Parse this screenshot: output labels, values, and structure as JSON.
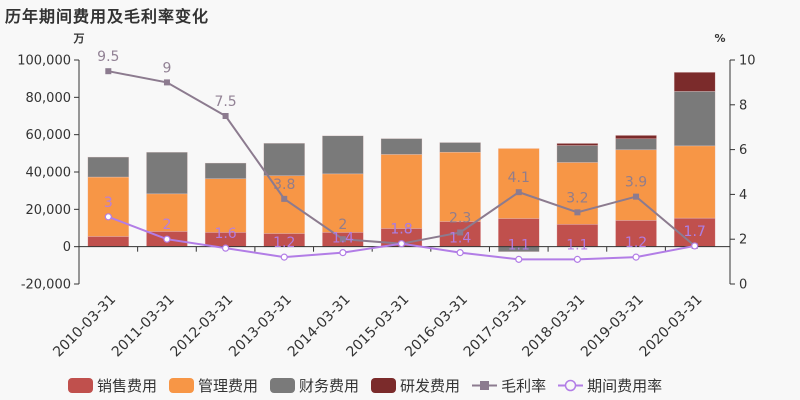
{
  "title": "历年期间费用及毛利率变化",
  "chart_data": {
    "type": "bar",
    "title": "历年期间费用及毛利率变化",
    "left_axis": {
      "unit": "万",
      "min": -20000,
      "max": 100000,
      "ticks": [
        -20000,
        0,
        20000,
        40000,
        60000,
        80000,
        100000
      ],
      "tick_labels": [
        "-20,000",
        "0",
        "20,000",
        "40,000",
        "60,000",
        "80,000",
        "100,000"
      ]
    },
    "right_axis": {
      "unit": "%",
      "min": 0,
      "max": 10,
      "ticks": [
        0,
        2,
        4,
        6,
        8,
        10
      ],
      "tick_labels": [
        "0",
        "2",
        "4",
        "6",
        "8",
        "10"
      ]
    },
    "categories": [
      "2010-03-31",
      "2011-03-31",
      "2012-03-31",
      "2013-03-31",
      "2014-03-31",
      "2015-03-31",
      "2016-03-31",
      "2017-03-31",
      "2018-03-31",
      "2019-03-31",
      "2020-03-31"
    ],
    "series": [
      {
        "name": "销售费用",
        "type": "bar",
        "stack": true,
        "axis": "left",
        "color": "#c0504d",
        "values": [
          5500,
          8200,
          7700,
          7100,
          7700,
          9800,
          13500,
          15100,
          12000,
          14100,
          15300
        ]
      },
      {
        "name": "管理费用",
        "type": "bar",
        "stack": true,
        "axis": "left",
        "color": "#f79646",
        "values": [
          31800,
          20100,
          28700,
          30900,
          31300,
          39600,
          37100,
          37500,
          33100,
          37800,
          38700
        ]
      },
      {
        "name": "财务费用",
        "type": "bar",
        "stack": true,
        "axis": "left",
        "color": "#7a7a7a",
        "values": [
          10700,
          22300,
          8400,
          17400,
          20400,
          8500,
          5200,
          -2700,
          9100,
          5900,
          29200
        ]
      },
      {
        "name": "研发费用",
        "type": "bar",
        "stack": true,
        "axis": "left",
        "color": "#7b2b2b",
        "values": [
          0,
          0,
          0,
          0,
          0,
          0,
          0,
          0,
          1100,
          1800,
          10200
        ]
      },
      {
        "name": "毛利率",
        "type": "line",
        "axis": "right",
        "color": "#8c7b8f",
        "marker": "square",
        "values": [
          9.5,
          9,
          7.5,
          3.8,
          2,
          1.8,
          2.3,
          4.1,
          3.2,
          3.9,
          1.7
        ]
      },
      {
        "name": "期间费用率",
        "type": "line",
        "axis": "right",
        "color": "#b27de6",
        "marker": "circle",
        "values": [
          3,
          2,
          1.6,
          1.2,
          1.4,
          1.8,
          1.4,
          1.1,
          1.1,
          1.2,
          1.7
        ]
      }
    ],
    "xlabel": "",
    "ylabel": "万",
    "y2label": "%",
    "grid": false,
    "legend_position": "bottom"
  },
  "legend": [
    {
      "label": "销售费用",
      "kind": "box",
      "color": "#c0504d"
    },
    {
      "label": "管理费用",
      "kind": "box",
      "color": "#f79646"
    },
    {
      "label": "财务费用",
      "kind": "box",
      "color": "#7a7a7a"
    },
    {
      "label": "研发费用",
      "kind": "box",
      "color": "#7b2b2b"
    },
    {
      "label": "毛利率",
      "kind": "line-square",
      "color": "#8c7b8f"
    },
    {
      "label": "期间费用率",
      "kind": "line-circle",
      "color": "#b27de6"
    }
  ]
}
